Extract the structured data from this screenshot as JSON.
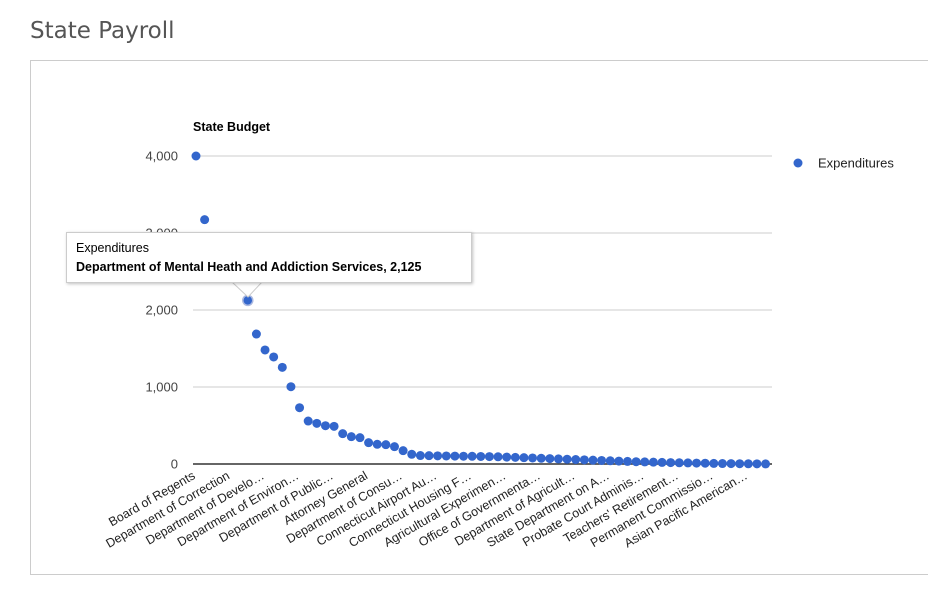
{
  "page": {
    "title": "State Payroll"
  },
  "chart_data": {
    "type": "scatter",
    "title": "State Budget",
    "xlabel": "",
    "ylabel": "",
    "ylim": [
      0,
      4000
    ],
    "yticks": [
      "0",
      "1,000",
      "2,000",
      "3,000",
      "4,000"
    ],
    "grid": true,
    "legend_position": "right",
    "series": [
      {
        "name": "Expenditures",
        "color": "#3366cc",
        "values": [
          4000,
          3173,
          2950,
          2750,
          2500,
          2368,
          2125,
          1688,
          1481,
          1390,
          1255,
          1004,
          731,
          558,
          528,
          497,
          489,
          394,
          355,
          342,
          277,
          256,
          251,
          225,
          173,
          126,
          110,
          108,
          106,
          104,
          103,
          101,
          100,
          98,
          96,
          94,
          90,
          86,
          82,
          78,
          74,
          70,
          66,
          62,
          58,
          54,
          50,
          46,
          42,
          38,
          34,
          30,
          27,
          24,
          21,
          18,
          16,
          14,
          12,
          10,
          8,
          6,
          5,
          4,
          3,
          2,
          1
        ]
      }
    ],
    "categories": [
      "Board of Regents",
      "",
      "",
      "",
      "Department of Correction",
      "",
      "Department of Mental Heath and Addiction Services",
      "",
      "Department of Develo…",
      "",
      "",
      "",
      "Department of Environ…",
      "",
      "",
      "",
      "Department of Public…",
      "",
      "",
      "",
      "Attorney General",
      "",
      "",
      "",
      "Department of Consu…",
      "",
      "",
      "",
      "Connecticut Airport Au…",
      "",
      "",
      "",
      "Connecticut Housing F…",
      "",
      "",
      "",
      "Agricultural Experimen…",
      "",
      "",
      "",
      "Office of Governmenta…",
      "",
      "",
      "",
      "Department of Agricult…",
      "",
      "",
      "",
      "State Department on A…",
      "",
      "",
      "",
      "Probate Court Adminis…",
      "",
      "",
      "",
      "Teachers' Retirement…",
      "",
      "",
      "",
      "Permanent Commissio…",
      "",
      "",
      "",
      "Asian Pacific American…",
      "",
      ""
    ],
    "x_tick_every": 4,
    "tooltip": {
      "series": "Expenditures",
      "text": "Department of Mental Heath and Addiction Services, 2,125",
      "point_index": 6
    }
  }
}
